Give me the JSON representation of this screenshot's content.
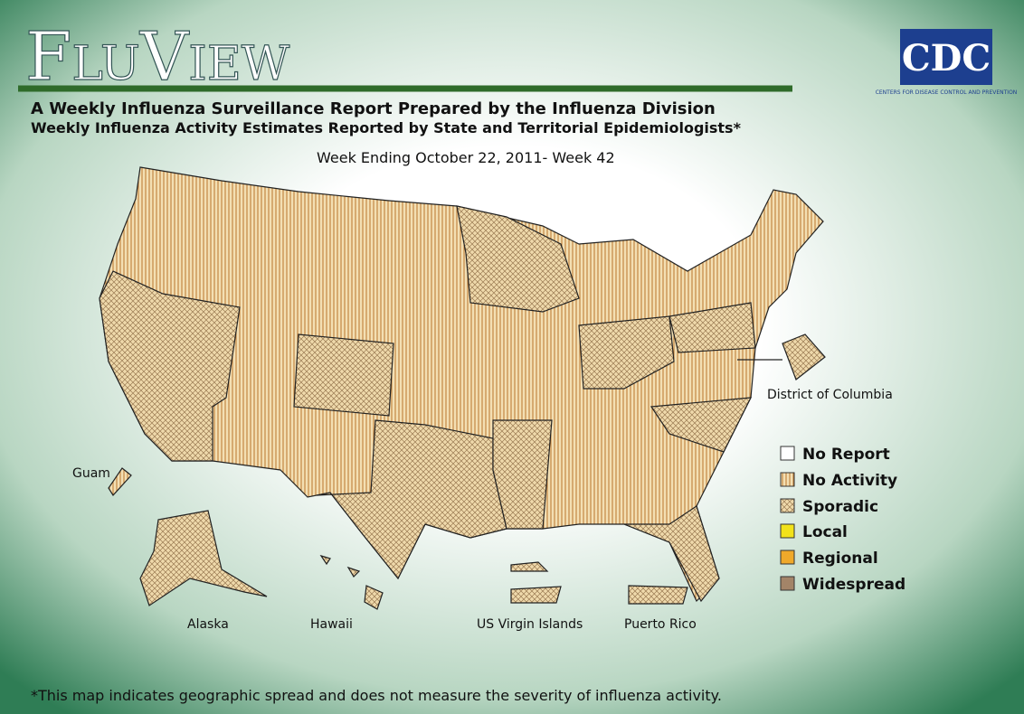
{
  "header": {
    "title": "FluView",
    "subtitle": "A Weekly Influenza Surveillance Report Prepared by the Influenza Division",
    "subtitle2": "Weekly Influenza Activity Estimates Reported by State and Territorial Epidemiologists*",
    "week": "Week Ending October 22, 2011- Week 42"
  },
  "logo": {
    "text": "CDC",
    "caption": "Centers for Disease Control and Prevention"
  },
  "map_labels": {
    "dc": "District of Columbia",
    "guam": "Guam",
    "alaska": "Alaska",
    "hawaii": "Hawaii",
    "virgin_islands": "US Virgin Islands",
    "puerto_rico": "Puerto Rico"
  },
  "legend": [
    "No Report",
    "No Activity",
    "Sporadic",
    "Local",
    "Regional",
    "Widespread"
  ],
  "footnote": "*This map indicates geographic spread and does not measure the severity of influenza activity."
}
